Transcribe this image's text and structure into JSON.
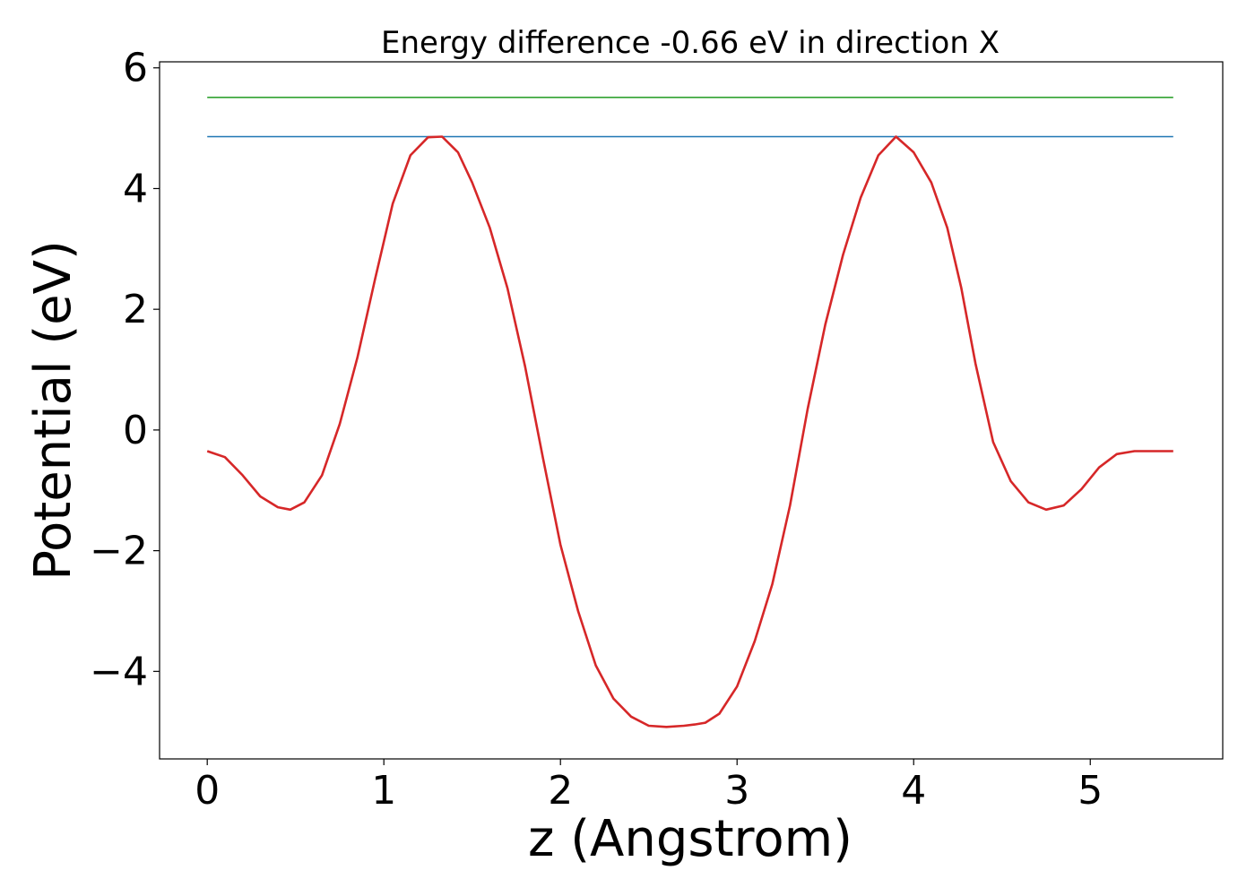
{
  "chart_data": {
    "type": "line",
    "title": "Energy difference -0.66 eV in direction X",
    "xlabel": "z (Angstrom)",
    "ylabel": "Potential (eV)",
    "xlim": [
      -0.27,
      5.75
    ],
    "ylim": [
      -5.45,
      6.1
    ],
    "xticks": [
      0,
      1,
      2,
      3,
      4,
      5
    ],
    "xtick_labels": [
      "0",
      "1",
      "2",
      "3",
      "4",
      "5"
    ],
    "yticks": [
      -4,
      -2,
      0,
      2,
      4,
      6
    ],
    "ytick_labels": [
      "−4",
      "−2",
      "0",
      "2",
      "4",
      "6"
    ],
    "grid": false,
    "series": [
      {
        "color": "#2ca02c",
        "x": [
          0,
          5.47
        ],
        "y": [
          5.51,
          5.51
        ]
      },
      {
        "color": "#1f77b4",
        "x": [
          0,
          5.47
        ],
        "y": [
          4.86,
          4.86
        ]
      },
      {
        "color": "#d62728",
        "x": [
          0,
          0.1,
          0.2,
          0.3,
          0.4,
          0.47,
          0.55,
          0.65,
          0.75,
          0.85,
          0.95,
          1.05,
          1.15,
          1.25,
          1.33,
          1.42,
          1.5,
          1.6,
          1.7,
          1.8,
          1.9,
          2.0,
          2.1,
          2.2,
          2.3,
          2.4,
          2.5,
          2.6,
          2.7,
          2.76,
          2.82,
          2.9,
          3.0,
          3.1,
          3.2,
          3.3,
          3.4,
          3.5,
          3.6,
          3.7,
          3.8,
          3.9,
          4.0,
          4.1,
          4.19,
          4.27,
          4.35,
          4.45,
          4.55,
          4.65,
          4.75,
          4.85,
          4.95,
          5.05,
          5.15,
          5.25,
          5.35,
          5.42,
          5.47
        ],
        "y": [
          -0.35,
          -0.45,
          -0.75,
          -1.1,
          -1.28,
          -1.32,
          -1.2,
          -0.75,
          0.1,
          1.2,
          2.5,
          3.75,
          4.55,
          4.85,
          4.86,
          4.6,
          4.1,
          3.35,
          2.35,
          1.05,
          -0.45,
          -1.9,
          -3.0,
          -3.9,
          -4.45,
          -4.75,
          -4.9,
          -4.92,
          -4.9,
          -4.88,
          -4.85,
          -4.7,
          -4.25,
          -3.5,
          -2.55,
          -1.25,
          0.35,
          1.75,
          2.9,
          3.85,
          4.55,
          4.86,
          4.6,
          4.1,
          3.35,
          2.35,
          1.1,
          -0.2,
          -0.85,
          -1.2,
          -1.32,
          -1.25,
          -0.98,
          -0.62,
          -0.4,
          -0.35,
          -0.35,
          -0.35,
          -0.35
        ]
      }
    ]
  }
}
